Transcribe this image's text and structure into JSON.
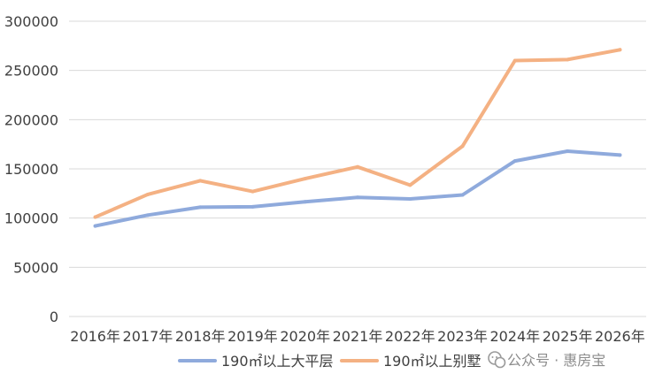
{
  "chart_data": {
    "type": "line",
    "categories": [
      "2016年",
      "2017年",
      "2018年",
      "2019年",
      "2020年",
      "2021年",
      "2022年",
      "2023年",
      "2024年",
      "2025年",
      "2026年"
    ],
    "ylim": [
      0,
      300000
    ],
    "y_ticks": [
      0,
      50000,
      100000,
      150000,
      200000,
      250000,
      300000
    ],
    "grid": true,
    "legend_position": "bottom",
    "series": [
      {
        "name": "190㎡以上大平层",
        "color": "#8faadc",
        "values": [
          92000,
          103000,
          111000,
          111500,
          116500,
          121000,
          119500,
          123500,
          158000,
          168000,
          164000
        ]
      },
      {
        "name": "190㎡以上别墅",
        "color": "#f4b183",
        "values": [
          101000,
          124000,
          138000,
          127000,
          140000,
          152000,
          133500,
          173000,
          260000,
          261000,
          271000
        ]
      }
    ]
  },
  "watermark": {
    "text": "公众号 · 惠房宝",
    "icon": "wechat-icon"
  }
}
